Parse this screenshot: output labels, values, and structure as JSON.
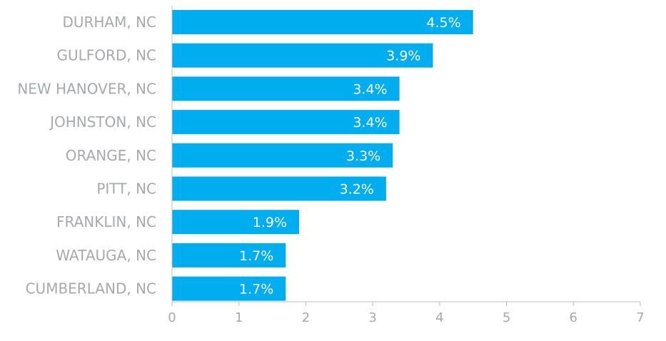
{
  "chart_data": {
    "type": "bar",
    "orientation": "horizontal",
    "categories": [
      "DURHAM, NC",
      "GULFORD, NC",
      "NEW HANOVER, NC",
      "JOHNSTON, NC",
      "ORANGE, NC",
      "PITT, NC",
      "FRANKLIN, NC",
      "WATAUGA, NC",
      "CUMBERLAND, NC"
    ],
    "values": [
      4.5,
      3.9,
      3.4,
      3.4,
      3.3,
      3.2,
      1.9,
      1.7,
      1.7
    ],
    "data_labels": [
      "4.5%",
      "3.9%",
      "3.4%",
      "3.4%",
      "3.3%",
      "3.2%",
      "1.9%",
      "1.7%",
      "1.7%"
    ],
    "xticks": [
      "0",
      "1",
      "2",
      "3",
      "4",
      "5",
      "6",
      "7"
    ],
    "xlim": [
      0,
      7
    ],
    "grid": false,
    "bar_color": "#00aeef",
    "axis_color": "#bcbec0",
    "label_color": "#a7a9ac"
  }
}
